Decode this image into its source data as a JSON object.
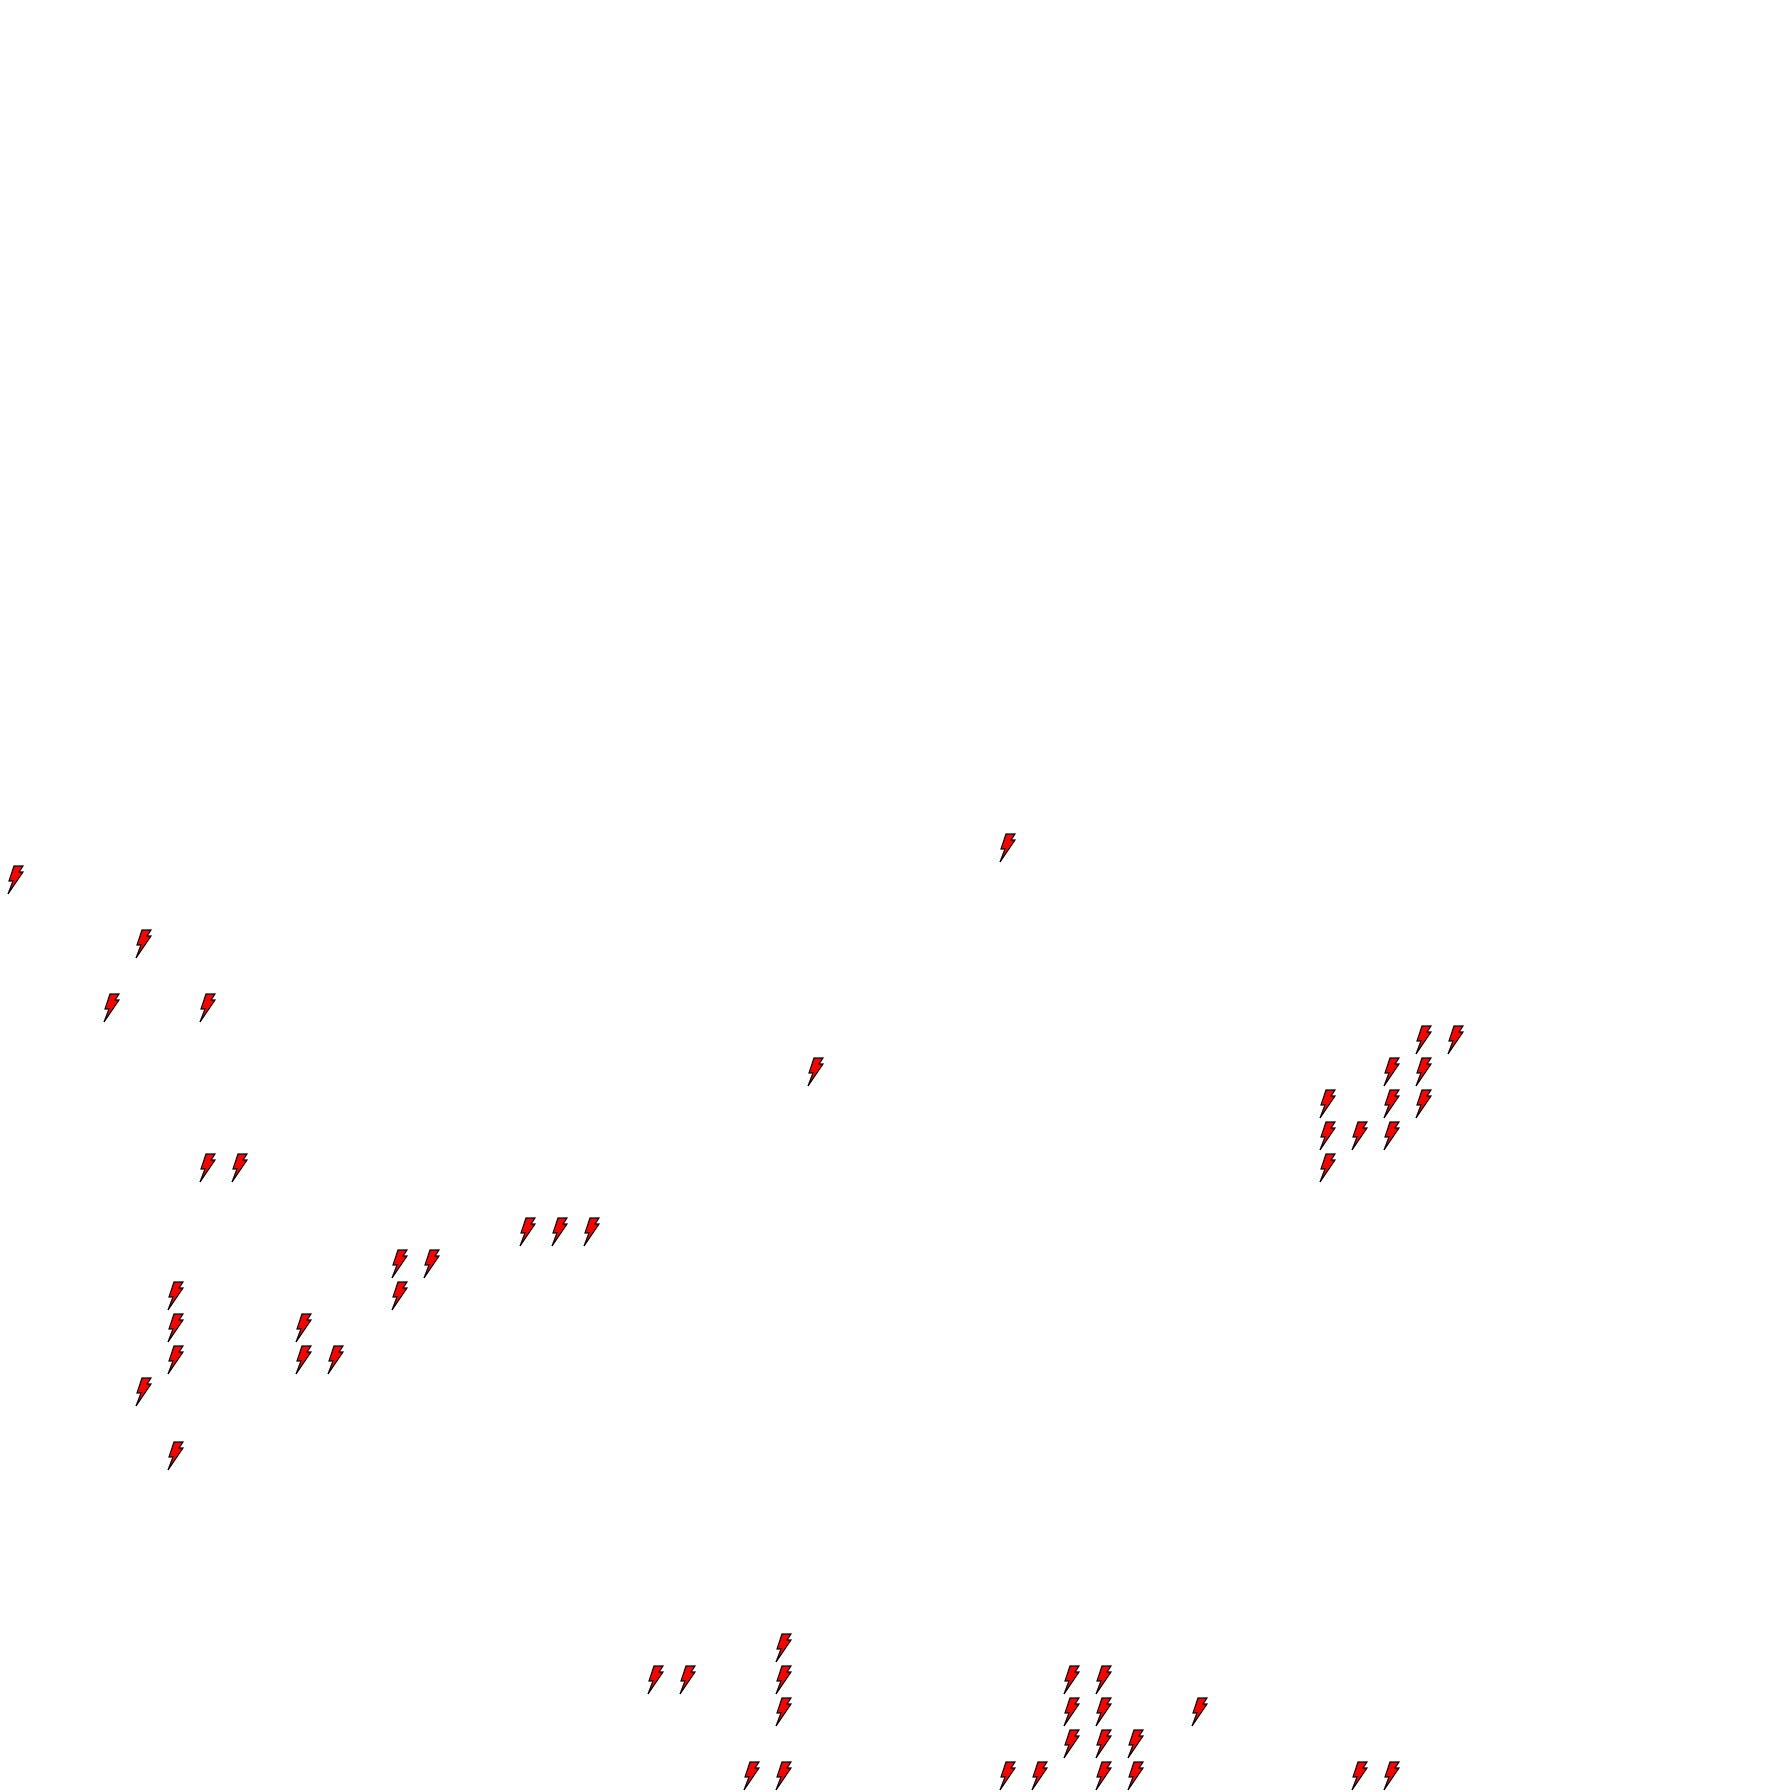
{
  "icon": {
    "name": "lightning-bolt-icon",
    "fill": "#ff0000",
    "stroke": "#000000"
  },
  "bolts": [
    [
      31,
      26
    ],
    [
      0,
      27
    ],
    [
      4,
      29
    ],
    [
      3,
      31
    ],
    [
      6,
      31
    ],
    [
      44,
      32
    ],
    [
      45,
      32
    ],
    [
      25,
      33
    ],
    [
      43,
      33
    ],
    [
      44,
      33
    ],
    [
      41,
      34
    ],
    [
      43,
      34
    ],
    [
      44,
      34
    ],
    [
      41,
      35
    ],
    [
      42,
      35
    ],
    [
      43,
      35
    ],
    [
      41,
      36
    ],
    [
      6,
      36
    ],
    [
      7,
      36
    ],
    [
      16,
      38
    ],
    [
      17,
      38
    ],
    [
      18,
      38
    ],
    [
      12,
      39
    ],
    [
      13,
      39
    ],
    [
      12,
      40
    ],
    [
      5,
      40
    ],
    [
      5,
      41
    ],
    [
      9,
      41
    ],
    [
      5,
      42
    ],
    [
      9,
      42
    ],
    [
      10,
      42
    ],
    [
      4,
      43
    ],
    [
      5,
      45
    ],
    [
      24,
      51
    ],
    [
      20,
      52
    ],
    [
      21,
      52
    ],
    [
      24,
      52
    ],
    [
      33,
      52
    ],
    [
      34,
      52
    ],
    [
      24,
      53
    ],
    [
      33,
      53
    ],
    [
      34,
      53
    ],
    [
      37,
      53
    ],
    [
      33,
      54
    ],
    [
      34,
      54
    ],
    [
      35,
      54
    ],
    [
      23,
      55
    ],
    [
      24,
      55
    ],
    [
      31,
      55
    ],
    [
      32,
      55
    ],
    [
      34,
      55
    ],
    [
      35,
      55
    ],
    [
      42,
      55
    ],
    [
      43,
      55
    ]
  ]
}
